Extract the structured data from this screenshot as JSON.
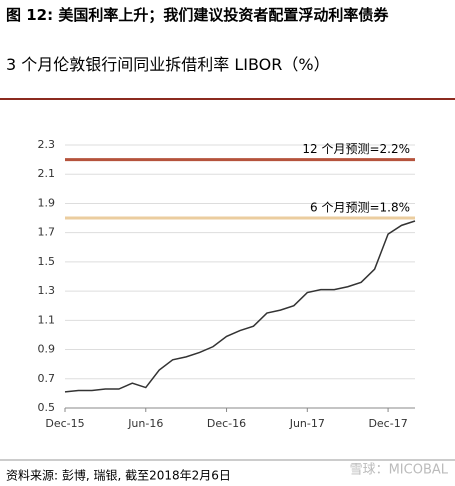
{
  "chart_data": {
    "type": "line",
    "title": "图 12: 美国利率上升；我们建议投资者配置浮动利率债券",
    "subtitle": "3 个月伦敦银行间同业拆借利率 LIBOR（%）",
    "source": "资料来源: 彭博, 瑞银, 截至2018年2月6日",
    "watermark": "雪球：MICOBAL",
    "x": [
      "Dec-15",
      "Jan-16",
      "Feb-16",
      "Mar-16",
      "Apr-16",
      "May-16",
      "Jun-16",
      "Jul-16",
      "Aug-16",
      "Sep-16",
      "Oct-16",
      "Nov-16",
      "Dec-16",
      "Jan-17",
      "Feb-17",
      "Mar-17",
      "Apr-17",
      "May-17",
      "Jun-17",
      "Jul-17",
      "Aug-17",
      "Sep-17",
      "Oct-17",
      "Nov-17",
      "Dec-17",
      "Jan-18",
      "Feb-18"
    ],
    "series": [
      {
        "name": "LIBOR",
        "color": "#333333",
        "values": [
          0.61,
          0.62,
          0.62,
          0.63,
          0.63,
          0.67,
          0.64,
          0.76,
          0.83,
          0.85,
          0.88,
          0.92,
          0.99,
          1.03,
          1.06,
          1.15,
          1.17,
          1.2,
          1.29,
          1.31,
          1.31,
          1.33,
          1.36,
          1.45,
          1.69,
          1.75,
          1.78
        ]
      }
    ],
    "xlim": [
      "Dec-15",
      "Feb-18"
    ],
    "xticks": [
      "Dec-15",
      "Jun-16",
      "Dec-16",
      "Jun-17",
      "Dec-17"
    ],
    "ylim": [
      0.5,
      2.3
    ],
    "yticks": [
      0.5,
      0.7,
      0.9,
      1.1,
      1.3,
      1.5,
      1.7,
      1.9,
      2.1,
      2.3
    ],
    "grid": true,
    "annotations": [
      {
        "value": 2.2,
        "label": "12 个月预测=2.2%",
        "color": "#b5533c"
      },
      {
        "value": 1.8,
        "label": "6 个月预测=1.8%",
        "color": "#ebcd9f"
      }
    ]
  }
}
